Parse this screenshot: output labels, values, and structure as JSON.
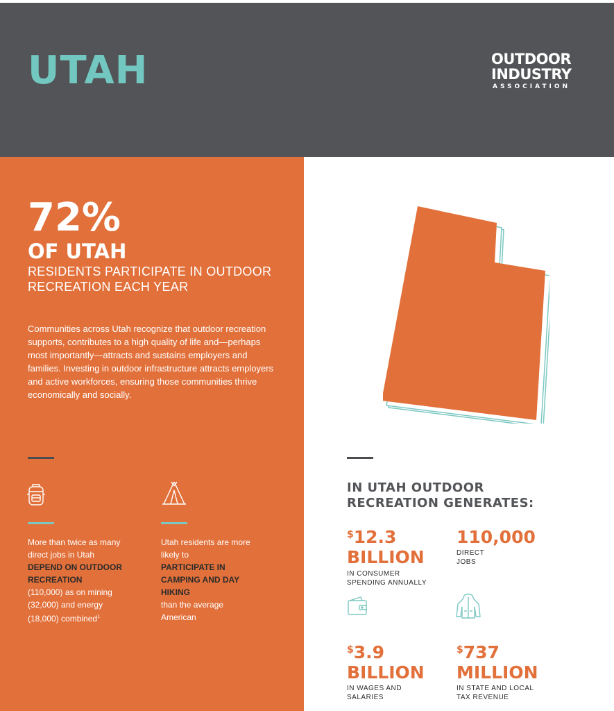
{
  "header": {
    "title": "UTAH",
    "logo": {
      "line1": "OUTDOOR",
      "line2": "INDUSTRY",
      "line3": "ASSOCIATION"
    }
  },
  "hero": {
    "percent": "72%",
    "subject": "OF UTAH",
    "description": "RESIDENTS PARTICIPATE IN OUTDOOR RECREATION EACH YEAR"
  },
  "intro": "Communities across Utah recognize that outdoor recreation supports, contributes to a high quality of life and—perhaps most importantly—attracts and sustains employers and families. Investing in outdoor infrastructure attracts employers and active workforces, ensuring those communities thrive economically and socially.",
  "facts": [
    {
      "icon": "backpack-icon",
      "pre": "More than twice as many direct jobs in Utah",
      "bold": "DEPEND ON OUTDOOR RECREATION",
      "post": "(110,000) as on mining (32,000) and energy (18,000) combined",
      "footnote": "1"
    },
    {
      "icon": "tent-icon",
      "pre": "Utah residents are more likely to",
      "bold": "PARTICIPATE IN CAMPING AND DAY HIKING",
      "post": "than the average American"
    }
  ],
  "generates": {
    "title_line1": "IN UTAH OUTDOOR",
    "title_line2": "RECREATION GENERATES:",
    "metrics": [
      {
        "currency": "$",
        "value": "12.3",
        "unit": "BILLION",
        "label_line1": "IN CONSUMER",
        "label_line2": "SPENDING ANNUALLY"
      },
      {
        "currency": "",
        "value": "110,000",
        "unit": "",
        "label_line1": "DIRECT",
        "label_line2": "JOBS"
      },
      {
        "currency": "$",
        "value": "3.9",
        "unit": "BILLION",
        "label_line1": "IN WAGES AND",
        "label_line2": "SALARIES"
      },
      {
        "currency": "$",
        "value": "737",
        "unit": "MILLION",
        "label_line1": "IN STATE AND LOCAL",
        "label_line2": "TAX REVENUE"
      }
    ],
    "icons": [
      "wallet-icon",
      "jacket-icon"
    ]
  },
  "colors": {
    "orange": "#e2703a",
    "teal": "#72c7c0",
    "charcoal": "#525457"
  }
}
